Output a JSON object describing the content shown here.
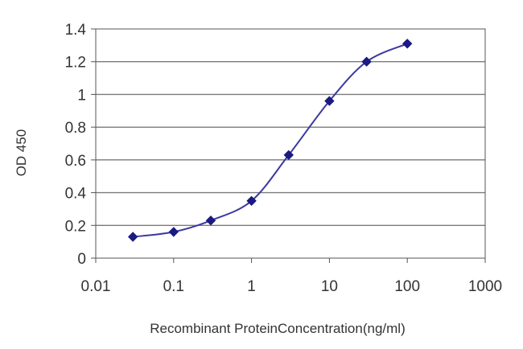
{
  "chart_data": {
    "type": "line",
    "title": "",
    "xlabel": "Recombinant ProteinConcentration(ng/ml)",
    "ylabel": "OD 450",
    "xscale": "log",
    "xlim": [
      0.01,
      1000
    ],
    "ylim": [
      0,
      1.4
    ],
    "grid": "horizontal",
    "legend": "none",
    "x_ticks": [
      "0.01",
      "0.1",
      "1",
      "10",
      "100",
      "1000"
    ],
    "y_ticks": [
      "0",
      "0.2",
      "0.4",
      "0.6",
      "0.8",
      "1",
      "1.2",
      "1.4"
    ],
    "series": [
      {
        "color": "#3a3aa0",
        "marker": "diamond",
        "marker_color": "#1a1a80",
        "x": [
          0.03,
          0.1,
          0.3,
          1,
          3,
          10,
          30,
          100
        ],
        "y": [
          0.13,
          0.16,
          0.23,
          0.35,
          0.63,
          0.96,
          1.2,
          1.31
        ]
      }
    ]
  }
}
